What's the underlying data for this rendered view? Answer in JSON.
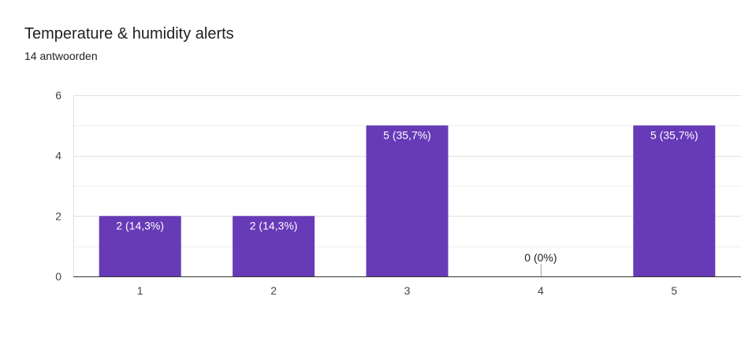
{
  "header": {
    "title": "Temperature & humidity alerts",
    "response_count": "14 antwoorden"
  },
  "colors": {
    "bar": "#673ab7",
    "bar_label_inside": "#ffffff",
    "bar_label_outside": "#202124",
    "grid_major": "#e0e0e0",
    "grid_minor": "#f0f0f0",
    "axis": "#333333"
  },
  "chart_data": {
    "type": "bar",
    "categories": [
      "1",
      "2",
      "3",
      "4",
      "5"
    ],
    "values": [
      2,
      2,
      5,
      0,
      5
    ],
    "data_labels": [
      "2 (14,3%)",
      "2 (14,3%)",
      "5 (35,7%)",
      "0 (0%)",
      "5 (35,7%)"
    ],
    "title": "Temperature & humidity alerts",
    "subtitle": "14 antwoorden",
    "xlabel": "",
    "ylabel": "",
    "ylim": [
      0,
      6
    ],
    "yticks": [
      0,
      2,
      4,
      6
    ],
    "grid": true,
    "legend": "none"
  }
}
